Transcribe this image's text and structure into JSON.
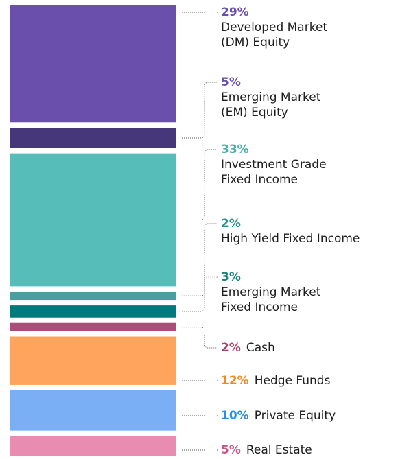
{
  "chart_data": {
    "type": "stacked_column",
    "categories": [
      [
        "Developed Market",
        "(DM) Equity"
      ],
      [
        "Emerging Market",
        "(EM) Equity"
      ],
      [
        "Investment Grade",
        "Fixed Income"
      ],
      [
        "High Yield Fixed Income"
      ],
      [
        "Emerging Market",
        "Fixed Income"
      ],
      [
        "Cash"
      ],
      [
        "Hedge Funds"
      ],
      [
        "Private Equity"
      ],
      [
        "Real Estate"
      ]
    ],
    "values": [
      29,
      5,
      33,
      2,
      3,
      2,
      12,
      10,
      5
    ],
    "value_labels": [
      "29%",
      "5%",
      "33%",
      "2%",
      "3%",
      "2%",
      "12%",
      "10%",
      "5%"
    ],
    "colors": [
      "#6b4fac",
      "#46367a",
      "#56bdb8",
      "#4a9e9f",
      "#007a7c",
      "#a84e78",
      "#ffa45c",
      "#7aaef5",
      "#e98cb1"
    ],
    "label_colors": [
      "#6b4fac",
      "#6b4fac",
      "#4aaea9",
      "#2a8f93",
      "#1a7f7f",
      "#a8406e",
      "#f08a24",
      "#2a8fe0",
      "#c8568a"
    ]
  }
}
